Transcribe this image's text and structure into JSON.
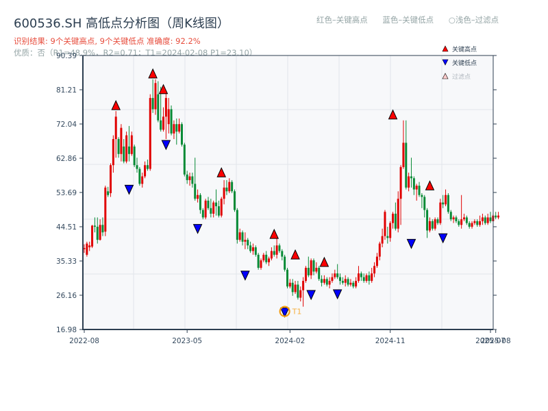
{
  "header": {
    "title": "600536.SH 高低点分析图（周K线图）",
    "result": "识别结果: 9个关键高点, 9个关键低点   准确度: 92.2%",
    "quality": "优质：否（R1=48.9%，R2=0.71；T1=2024-02-08 P1=23.10）",
    "color_legend": [
      "红色–关键高点",
      "蓝色–关键低点",
      "○浅色–过滤点"
    ]
  },
  "legend": {
    "items": [
      {
        "label": "关键高点",
        "marker": "triangle-up",
        "color": "#ff0000"
      },
      {
        "label": "关键低点",
        "marker": "triangle-down",
        "color": "#0000ff"
      },
      {
        "label": "过滤点",
        "marker": "triangle-up",
        "color": "#ffcccc"
      }
    ]
  },
  "colors": {
    "up": "#e00000",
    "down": "#078a35",
    "high_marker": "#ff0000",
    "low_marker": "#0000ff",
    "t1_ring": "#f39c12",
    "plot_bg": "#f7f8fa",
    "grid": "#e2e5ea",
    "axis": "#2c3e50"
  },
  "chart_data": {
    "type": "candlestick",
    "title": "600536.SH 高低点分析图（周K线图）",
    "xlabel": "",
    "ylabel": "",
    "ylim": [
      16.98,
      90.39
    ],
    "yticks": [
      16.98,
      26.16,
      35.33,
      44.51,
      53.69,
      62.86,
      72.04,
      81.21,
      90.39
    ],
    "xticks": [
      {
        "label": "2022-08",
        "index": 0
      },
      {
        "label": "2023-05",
        "index": 39
      },
      {
        "label": "2024-02",
        "index": 78
      },
      {
        "label": "2024-11",
        "index": 116
      },
      {
        "label": "2025-07",
        "index": 154
      },
      {
        "label": "2025-08",
        "index": 156
      }
    ],
    "grid": true,
    "legend_position": "upper right",
    "candles_ohlc": [
      [
        38.5,
        38.8,
        39.8,
        37.5
      ],
      [
        37.0,
        40.0,
        40.5,
        36.5
      ],
      [
        39.0,
        39.5,
        40.5,
        38.0
      ],
      [
        39.2,
        44.8,
        45.0,
        38.8
      ],
      [
        44.8,
        44.5,
        47.0,
        43.0
      ],
      [
        44.5,
        41.0,
        47.0,
        40.0
      ],
      [
        41.0,
        45.0,
        46.5,
        40.8
      ],
      [
        45.0,
        43.0,
        47.0,
        42.0
      ],
      [
        43.2,
        55.0,
        55.5,
        42.0
      ],
      [
        54.0,
        53.0,
        55.2,
        52.5
      ],
      [
        53.5,
        61.0,
        61.5,
        52.5
      ],
      [
        61.0,
        68.0,
        69.0,
        59.0
      ],
      [
        68.0,
        74.0,
        75.5,
        63.0
      ],
      [
        68.0,
        64.0,
        68.5,
        63.0
      ],
      [
        64.0,
        71.0,
        72.0,
        62.0
      ],
      [
        66.0,
        62.0,
        68.0,
        61.5
      ],
      [
        62.0,
        69.0,
        70.0,
        61.5
      ],
      [
        66.0,
        64.0,
        71.5,
        62.0
      ],
      [
        64.0,
        69.0,
        70.0,
        63.5
      ],
      [
        66.0,
        61.0,
        66.5,
        60.5
      ],
      [
        61.0,
        60.0,
        63.0,
        59.0
      ],
      [
        60.0,
        56.0,
        60.5,
        55.5
      ],
      [
        56.0,
        58.0,
        59.0,
        55.0
      ],
      [
        58.0,
        61.0,
        62.0,
        57.5
      ],
      [
        61.0,
        60.0,
        62.5,
        59.5
      ],
      [
        60.0,
        79.0,
        80.0,
        59.5
      ],
      [
        79.0,
        76.0,
        84.0,
        75.0
      ],
      [
        76.0,
        83.0,
        84.0,
        74.5
      ],
      [
        80.0,
        73.0,
        83.5,
        72.5
      ],
      [
        73.0,
        70.5,
        82.0,
        70.0
      ],
      [
        70.5,
        74.0,
        76.5,
        70.0
      ],
      [
        74.0,
        79.0,
        80.5,
        68.0
      ],
      [
        72.0,
        76.0,
        79.0,
        69.5
      ],
      [
        76.0,
        69.5,
        77.0,
        69.0
      ],
      [
        69.5,
        72.0,
        73.0,
        68.0
      ],
      [
        72.0,
        70.0,
        73.5,
        66.5
      ],
      [
        70.0,
        72.0,
        73.5,
        69.5
      ],
      [
        72.0,
        66.5,
        72.5,
        66.0
      ],
      [
        66.5,
        58.5,
        67.0,
        58.0
      ],
      [
        58.5,
        57.0,
        59.5,
        56.0
      ],
      [
        57.0,
        58.0,
        59.0,
        55.5
      ],
      [
        58.0,
        56.0,
        59.0,
        55.0
      ],
      [
        56.0,
        52.0,
        63.0,
        51.5
      ],
      [
        52.0,
        53.0,
        54.5,
        51.0
      ],
      [
        53.0,
        49.0,
        53.5,
        48.0
      ],
      [
        49.0,
        47.0,
        49.5,
        46.5
      ],
      [
        47.0,
        51.5,
        52.0,
        46.5
      ],
      [
        51.5,
        49.5,
        52.5,
        49.0
      ],
      [
        49.5,
        48.0,
        52.0,
        47.0
      ],
      [
        48.0,
        51.0,
        51.5,
        47.0
      ],
      [
        51.0,
        50.0,
        54.5,
        47.5
      ],
      [
        50.0,
        47.5,
        51.5,
        47.0
      ],
      [
        47.5,
        52.0,
        52.5,
        47.0
      ],
      [
        52.0,
        55.0,
        57.0,
        50.5
      ],
      [
        55.0,
        54.0,
        57.0,
        53.0
      ],
      [
        54.0,
        56.5,
        57.5,
        53.5
      ],
      [
        56.5,
        54.0,
        57.0,
        53.5
      ],
      [
        54.0,
        49.0,
        54.5,
        48.5
      ],
      [
        49.0,
        41.0,
        49.5,
        40.0
      ],
      [
        41.0,
        43.0,
        44.0,
        40.5
      ],
      [
        43.0,
        40.5,
        43.5,
        39.5
      ],
      [
        40.5,
        41.0,
        43.0,
        38.5
      ],
      [
        41.0,
        39.5,
        41.5,
        38.5
      ],
      [
        39.5,
        38.0,
        40.5,
        37.5
      ],
      [
        38.0,
        39.0,
        40.0,
        37.0
      ],
      [
        39.0,
        37.0,
        39.5,
        36.5
      ],
      [
        37.0,
        33.5,
        37.5,
        33.0
      ],
      [
        33.5,
        35.5,
        36.0,
        33.0
      ],
      [
        35.5,
        37.0,
        37.5,
        35.0
      ],
      [
        37.0,
        35.0,
        38.0,
        34.5
      ],
      [
        35.0,
        36.0,
        36.5,
        34.0
      ],
      [
        36.0,
        38.0,
        39.0,
        35.5
      ],
      [
        38.0,
        37.0,
        39.5,
        36.5
      ],
      [
        37.0,
        39.5,
        41.5,
        36.0
      ],
      [
        39.5,
        38.0,
        40.0,
        37.5
      ],
      [
        38.0,
        36.5,
        38.5,
        35.5
      ],
      [
        36.5,
        33.0,
        37.0,
        32.5
      ],
      [
        33.0,
        28.5,
        33.5,
        28.0
      ],
      [
        28.5,
        29.5,
        30.5,
        28.0
      ],
      [
        29.5,
        27.0,
        30.5,
        26.0
      ],
      [
        27.0,
        29.0,
        30.0,
        26.5
      ],
      [
        29.0,
        25.5,
        30.0,
        25.0
      ],
      [
        25.5,
        27.5,
        28.5,
        24.5
      ],
      [
        27.5,
        30.0,
        31.0,
        23.1
      ],
      [
        30.0,
        33.5,
        34.0,
        29.5
      ],
      [
        33.5,
        31.5,
        36.5,
        31.0
      ],
      [
        31.5,
        35.5,
        36.0,
        30.5
      ],
      [
        35.5,
        32.5,
        36.0,
        31.5
      ],
      [
        32.5,
        33.5,
        35.0,
        32.0
      ],
      [
        33.5,
        30.5,
        34.0,
        30.0
      ],
      [
        30.5,
        29.5,
        31.5,
        28.5
      ],
      [
        29.5,
        30.5,
        31.5,
        29.0
      ],
      [
        30.5,
        29.0,
        31.0,
        28.5
      ],
      [
        29.0,
        30.0,
        31.0,
        28.0
      ],
      [
        30.0,
        31.0,
        32.0,
        29.5
      ],
      [
        31.0,
        32.0,
        33.0,
        30.5
      ],
      [
        32.0,
        31.0,
        34.5,
        30.5
      ],
      [
        31.0,
        30.0,
        32.0,
        29.0
      ],
      [
        30.0,
        29.5,
        31.0,
        29.0
      ],
      [
        29.5,
        30.5,
        31.5,
        28.5
      ],
      [
        30.5,
        29.0,
        31.0,
        28.5
      ],
      [
        29.0,
        29.5,
        30.5,
        28.5
      ],
      [
        29.5,
        28.5,
        30.0,
        28.0
      ],
      [
        28.5,
        30.0,
        31.0,
        28.0
      ],
      [
        30.0,
        32.0,
        34.0,
        29.5
      ],
      [
        32.0,
        31.0,
        32.5,
        30.0
      ],
      [
        31.0,
        30.0,
        32.0,
        29.5
      ],
      [
        30.0,
        31.5,
        32.0,
        29.5
      ],
      [
        31.5,
        30.0,
        32.5,
        29.0
      ],
      [
        30.0,
        32.0,
        33.5,
        29.5
      ],
      [
        32.0,
        34.0,
        35.0,
        31.0
      ],
      [
        34.0,
        36.5,
        37.5,
        33.5
      ],
      [
        36.5,
        40.0,
        40.5,
        35.5
      ],
      [
        40.0,
        42.0,
        44.0,
        39.0
      ],
      [
        42.0,
        48.5,
        49.0,
        41.0
      ],
      [
        42.0,
        41.5,
        44.5,
        40.0
      ],
      [
        41.5,
        45.5,
        46.0,
        40.5
      ],
      [
        45.5,
        48.0,
        48.5,
        44.0
      ],
      [
        48.0,
        44.0,
        51.0,
        43.5
      ],
      [
        44.0,
        52.0,
        54.0,
        43.0
      ],
      [
        52.0,
        60.5,
        61.0,
        45.0
      ],
      [
        60.5,
        67.0,
        73.0,
        60.0
      ],
      [
        67.0,
        55.0,
        73.0,
        54.5
      ],
      [
        55.0,
        58.0,
        59.0,
        54.0
      ],
      [
        58.0,
        57.5,
        63.0,
        55.0
      ],
      [
        57.5,
        54.5,
        58.0,
        53.0
      ],
      [
        54.5,
        55.5,
        56.0,
        51.5
      ],
      [
        55.5,
        53.0,
        56.5,
        52.5
      ],
      [
        53.0,
        52.5,
        53.5,
        49.5
      ],
      [
        52.5,
        49.0,
        53.0,
        47.0
      ],
      [
        49.0,
        43.5,
        49.5,
        41.5
      ],
      [
        43.5,
        46.0,
        47.0,
        43.0
      ],
      [
        46.0,
        44.0,
        46.5,
        43.5
      ],
      [
        44.0,
        46.5,
        47.0,
        43.5
      ],
      [
        46.5,
        45.5,
        47.0,
        45.0
      ],
      [
        45.5,
        51.0,
        52.0,
        45.0
      ],
      [
        51.0,
        50.5,
        53.0,
        49.5
      ],
      [
        50.5,
        53.0,
        54.5,
        50.0
      ],
      [
        53.0,
        48.5,
        53.5,
        48.0
      ],
      [
        48.5,
        46.5,
        49.0,
        46.0
      ],
      [
        46.5,
        47.0,
        47.5,
        45.5
      ],
      [
        47.0,
        46.0,
        47.5,
        45.5
      ],
      [
        46.0,
        45.0,
        46.5,
        44.5
      ],
      [
        45.0,
        46.5,
        53.0,
        44.0
      ],
      [
        46.5,
        47.0,
        48.0,
        46.0
      ],
      [
        47.0,
        45.5,
        47.5,
        45.0
      ],
      [
        45.5,
        44.5,
        46.0,
        44.0
      ],
      [
        44.5,
        45.5,
        46.0,
        44.0
      ],
      [
        45.5,
        46.0,
        46.5,
        45.0
      ],
      [
        46.0,
        45.0,
        46.5,
        44.5
      ],
      [
        45.0,
        46.0,
        47.5,
        44.5
      ],
      [
        46.0,
        47.0,
        48.0,
        45.0
      ],
      [
        47.0,
        45.5,
        47.5,
        45.0
      ],
      [
        45.5,
        47.0,
        48.0,
        45.0
      ],
      [
        47.0,
        46.0,
        48.5,
        45.5
      ],
      [
        46.0,
        47.5,
        48.0,
        46.0
      ],
      [
        47.5,
        47.0,
        48.5,
        46.5
      ],
      [
        47.0,
        47.5,
        48.5,
        46.5
      ]
    ],
    "key_highs": [
      {
        "index": 12,
        "price": 75.5
      },
      {
        "index": 26,
        "price": 84.0
      },
      {
        "index": 30,
        "price": 79.8
      },
      {
        "index": 52,
        "price": 57.5
      },
      {
        "index": 72,
        "price": 41.0
      },
      {
        "index": 80,
        "price": 35.5
      },
      {
        "index": 91,
        "price": 33.5
      },
      {
        "index": 117,
        "price": 73.0
      },
      {
        "index": 131,
        "price": 54.0
      }
    ],
    "key_lows": [
      {
        "index": 17,
        "price": 56.0
      },
      {
        "index": 31,
        "price": 68.0
      },
      {
        "index": 43,
        "price": 45.5
      },
      {
        "index": 61,
        "price": 33.0
      },
      {
        "index": 76,
        "price": 23.1
      },
      {
        "index": 86,
        "price": 27.8
      },
      {
        "index": 96,
        "price": 28.0
      },
      {
        "index": 124,
        "price": 41.5
      },
      {
        "index": 136,
        "price": 43.0
      }
    ],
    "annotations": [
      {
        "label": "T1",
        "index": 76,
        "price": 23.1
      }
    ]
  }
}
